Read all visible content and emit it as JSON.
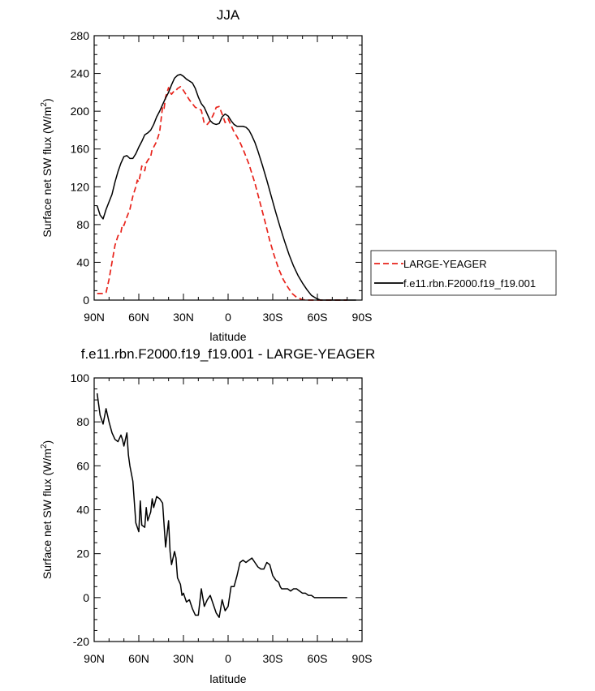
{
  "chart_data": [
    {
      "type": "line",
      "title": "JJA",
      "xlabel": "latitude",
      "ylabel": "Surface net SW flux (W/m²)",
      "ylabel_text": "Surface net SW flux (W/m",
      "ylabel_sup": "2",
      "ylabel_end": ")",
      "xlim": [
        90,
        -90
      ],
      "ylim": [
        0,
        280
      ],
      "yticks": [
        0,
        40,
        80,
        120,
        160,
        200,
        240,
        280
      ],
      "xticks": [
        90,
        60,
        30,
        0,
        -30,
        -60,
        -90
      ],
      "xtick_labels": [
        "90N",
        "60N",
        "30N",
        "0",
        "30S",
        "60S",
        "90S"
      ],
      "legend": "right",
      "series": [
        {
          "name": "LARGE-YEAGER",
          "color": "#e8231b",
          "dash": "dashed",
          "x": [
            88,
            84,
            82,
            80,
            78,
            76,
            74,
            72,
            71,
            70,
            68,
            66,
            65,
            64,
            62,
            61,
            60,
            59,
            58,
            56,
            55,
            54,
            52,
            51,
            50,
            48,
            46,
            44,
            43,
            42,
            40,
            39,
            38,
            36,
            35,
            34,
            33,
            32,
            30,
            28,
            26,
            24,
            22,
            20,
            18,
            16,
            14,
            12,
            10,
            8,
            6,
            4,
            2,
            0,
            -2,
            -4,
            -6,
            -8,
            -10,
            -12,
            -14,
            -16,
            -18,
            -20,
            -22,
            -25,
            -28,
            -31,
            -34,
            -37,
            -40,
            -43,
            -46,
            -49,
            -52,
            -55,
            -58,
            -60,
            -62,
            -64,
            -66,
            -68,
            -70,
            -75,
            -80
          ],
          "y": [
            7,
            7,
            8,
            22,
            40,
            58,
            68,
            72,
            80,
            79,
            88,
            96,
            103,
            110,
            120,
            127,
            125,
            133,
            142,
            137,
            145,
            148,
            152,
            160,
            162,
            168,
            178,
            205,
            203,
            215,
            225,
            220,
            218,
            222,
            222,
            224,
            225,
            226,
            222,
            217,
            212,
            208,
            204,
            203,
            201,
            187,
            186,
            190,
            196,
            204,
            205,
            197,
            188,
            192,
            185,
            178,
            173,
            167,
            160,
            152,
            144,
            134,
            124,
            112,
            100,
            82,
            63,
            47,
            33,
            22,
            14,
            7,
            3,
            1,
            0,
            0,
            0,
            0,
            0,
            0,
            0,
            0,
            0,
            0,
            0
          ]
        },
        {
          "name": "f.e11.rbn.F2000.f19_f19.001",
          "color": "#000000",
          "dash": "solid",
          "x": [
            88,
            86,
            84,
            82,
            80,
            78,
            76,
            74,
            72,
            70,
            68,
            66,
            64,
            62,
            60,
            58,
            56,
            54,
            52,
            50,
            48,
            46,
            44,
            42,
            40,
            38,
            36,
            34,
            32,
            30,
            28,
            26,
            24,
            22,
            20,
            18,
            16,
            14,
            12,
            10,
            8,
            6,
            4,
            2,
            0,
            -2,
            -4,
            -6,
            -8,
            -10,
            -12,
            -14,
            -16,
            -18,
            -20,
            -23,
            -26,
            -29,
            -32,
            -35,
            -38,
            -41,
            -44,
            -47,
            -50,
            -53,
            -56,
            -59,
            -62,
            -65,
            -68,
            -71,
            -74,
            -78,
            -82,
            -86
          ],
          "y": [
            100,
            90,
            86,
            96,
            104,
            112,
            125,
            136,
            145,
            152,
            153,
            150,
            150,
            155,
            162,
            168,
            175,
            177,
            180,
            186,
            194,
            200,
            207,
            214,
            220,
            228,
            235,
            238,
            239,
            237,
            234,
            232,
            230,
            224,
            215,
            208,
            204,
            197,
            190,
            187,
            186,
            187,
            194,
            197,
            195,
            190,
            186,
            184,
            184,
            184,
            183,
            180,
            174,
            167,
            158,
            143,
            127,
            110,
            93,
            77,
            62,
            48,
            36,
            26,
            18,
            11,
            5,
            2,
            0,
            0,
            0,
            0,
            0,
            0,
            0,
            0
          ]
        }
      ]
    },
    {
      "type": "line",
      "title": "f.e11.rbn.F2000.f19_f19.001 - LARGE-YEAGER",
      "xlabel": "latitude",
      "ylabel": "Surface net SW flux (W/m²)",
      "ylabel_text": "Surface net SW flux (W/m",
      "ylabel_sup": "2",
      "ylabel_end": ")",
      "xlim": [
        90,
        -90
      ],
      "ylim": [
        -20,
        100
      ],
      "yticks": [
        -20,
        0,
        20,
        40,
        60,
        80,
        100
      ],
      "xticks": [
        90,
        60,
        30,
        0,
        -30,
        -60,
        -90
      ],
      "xtick_labels": [
        "90N",
        "60N",
        "30N",
        "0",
        "30S",
        "60S",
        "90S"
      ],
      "series": [
        {
          "color": "#000000",
          "dash": "solid",
          "x": [
            88,
            86,
            84,
            82,
            80,
            78,
            76,
            74,
            72,
            71,
            70,
            68,
            67,
            66,
            64,
            62,
            60,
            59,
            58,
            56,
            55,
            54,
            52,
            51,
            50,
            48,
            46,
            44,
            42,
            40,
            39,
            38,
            36,
            35,
            34,
            32,
            31,
            30,
            28,
            26,
            24,
            22,
            20,
            18,
            16,
            14,
            12,
            10,
            8,
            6,
            4,
            2,
            0,
            -2,
            -4,
            -6,
            -8,
            -10,
            -12,
            -14,
            -16,
            -18,
            -20,
            -22,
            -24,
            -26,
            -28,
            -30,
            -32,
            -34,
            -35,
            -36,
            -38,
            -40,
            -42,
            -44,
            -46,
            -48,
            -50,
            -52,
            -54,
            -56,
            -58,
            -60,
            -65,
            -70,
            -75,
            -80
          ],
          "y": [
            93,
            83,
            79,
            86,
            80,
            75,
            72,
            71,
            74,
            72,
            69,
            75,
            65,
            60,
            53,
            34,
            30,
            44,
            33,
            32,
            41,
            35,
            39,
            45,
            41,
            46,
            45,
            43,
            23,
            35,
            21,
            15,
            21,
            18,
            9,
            6,
            1,
            2,
            -2,
            -1,
            -5,
            -8,
            -8,
            4,
            -4,
            -1,
            1,
            -3,
            -7,
            -9,
            -1,
            -6,
            -4,
            5,
            5,
            10,
            16,
            17,
            16,
            17,
            18,
            16,
            14,
            13,
            13,
            16,
            15,
            10,
            8,
            7,
            5,
            4,
            4,
            4,
            3,
            4,
            4,
            3,
            2,
            2,
            1,
            1,
            0,
            0,
            0,
            0,
            0,
            0
          ]
        }
      ]
    }
  ]
}
